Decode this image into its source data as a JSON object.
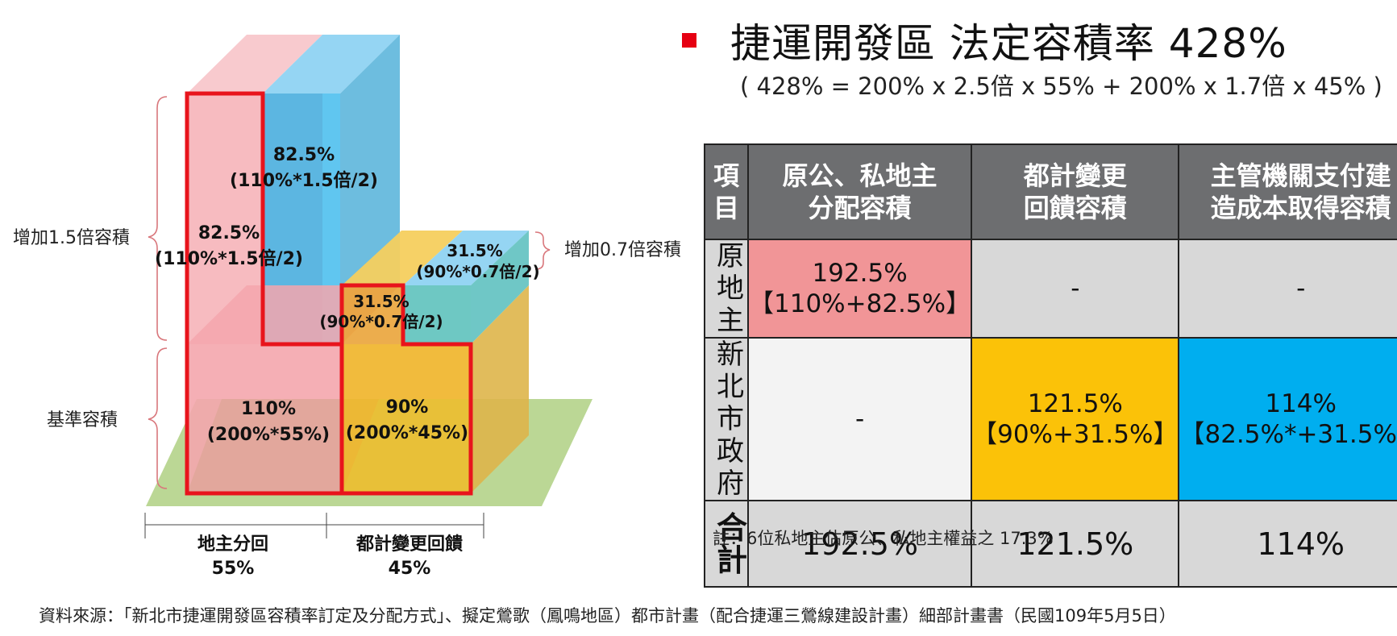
{
  "diagram": {
    "brace_labels": {
      "upper": "增加1.5倍容積",
      "lower": "基準容積",
      "right": "增加0.7倍容積"
    },
    "blocks": {
      "pink_upper": {
        "value": "82.5%",
        "formula": "(110%*1.5倍/2)"
      },
      "blue_upper": {
        "value": "82.5%",
        "formula": "(110%*1.5倍/2)"
      },
      "pink_base": {
        "value": "110%",
        "formula": "(200%*55%)"
      },
      "yellow_base": {
        "value": "90%",
        "formula": "(200%*45%)"
      },
      "yellow_upper": {
        "value": "31.5%",
        "formula": "(90%*0.7倍/2)"
      },
      "blue_upper_right": {
        "value": "31.5%",
        "formula": "(90%*0.7倍/2)"
      }
    },
    "bottom_labels": [
      {
        "name": "地主分回",
        "pct": "55%"
      },
      {
        "name": "都計變更回饋",
        "pct": "45%"
      }
    ],
    "colors": {
      "pink": "#f4a6ad",
      "blue": "#35aee6",
      "yellow": "#f3b922",
      "green_base": "#b7d58f",
      "outline_red": "#e8141c"
    }
  },
  "title": {
    "marker_color": "#e60012",
    "text": "捷運開發區 法定容積率 428%",
    "formula": "( 428% = 200% x 2.5倍 x 55% + 200% x 1.7倍 x 45% )"
  },
  "table": {
    "headers": [
      "項目",
      "原公、私地主分配容積",
      "都計變更回饋容積",
      "主管機關支付建造成本取得容積"
    ],
    "header_lines": [
      [
        "項目"
      ],
      [
        "原公、私地主",
        "分配容積"
      ],
      [
        "都計變更",
        "回饋容積"
      ],
      [
        "主管機關支付建",
        "造成本取得容積"
      ]
    ],
    "rows": [
      {
        "label": "原地主",
        "label_lines": [
          "原地主"
        ],
        "cells": [
          {
            "lines": [
              "192.5%",
              "【110%+82.5%】"
            ],
            "color": "pink"
          },
          {
            "lines": [
              "-"
            ],
            "color": "gray"
          },
          {
            "lines": [
              "-"
            ],
            "color": "gray"
          }
        ]
      },
      {
        "label": "新北市政府",
        "label_lines": [
          "新北市",
          "政府"
        ],
        "cells": [
          {
            "lines": [
              "-"
            ],
            "color": "light"
          },
          {
            "lines": [
              "121.5%",
              "【90%+31.5%】"
            ],
            "color": "yellow"
          },
          {
            "lines": [
              "114%",
              "【82.5%*+31.5%】"
            ],
            "color": "cyan"
          }
        ]
      }
    ],
    "total": {
      "label": "合計",
      "values": [
        "192.5%",
        "121.5%",
        "114%"
      ]
    }
  },
  "note": "註：6位私地主佔原公、私地主權益之 17.3%",
  "source": "資料來源：「新北市捷運開發區容積率訂定及分配方式」、擬定鶯歌（鳳鳴地區）都市計畫（配合捷運三鶯線建設計畫）細部計畫書（民國109年5月5日）"
}
